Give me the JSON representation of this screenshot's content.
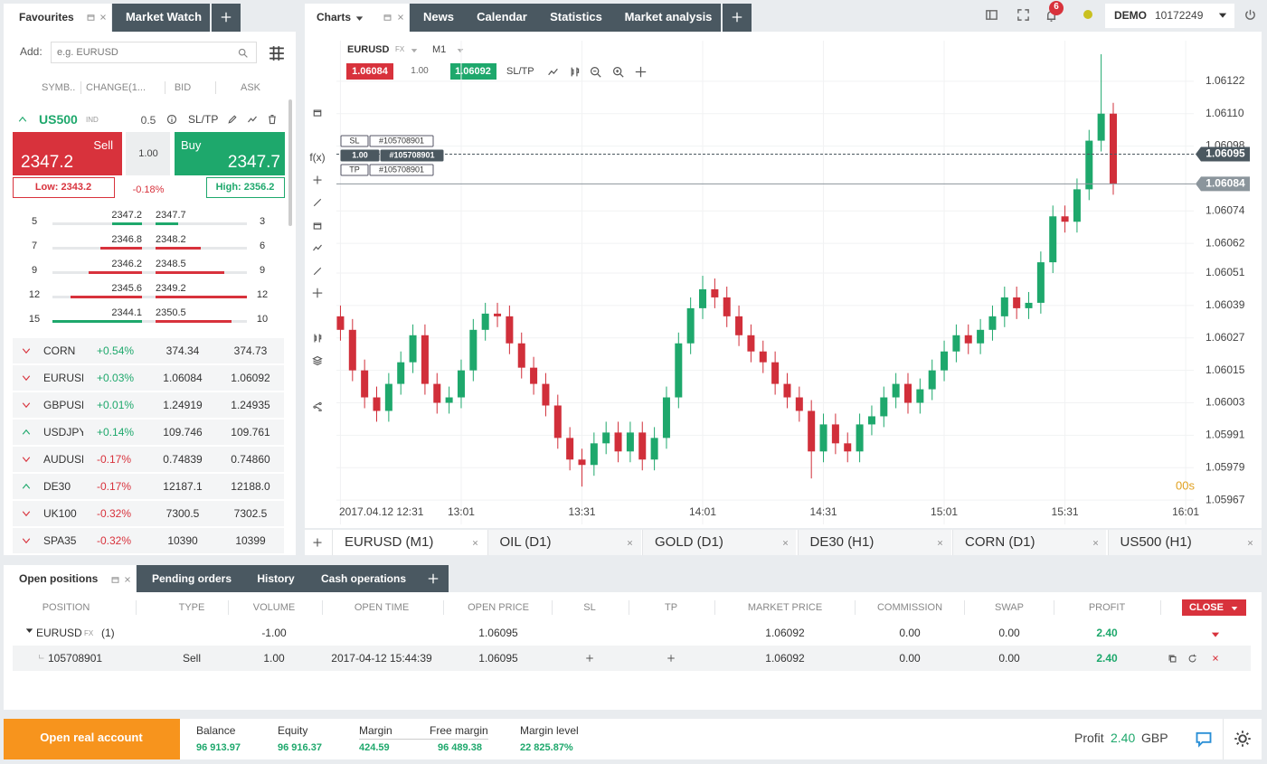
{
  "top_bar": {
    "notifications": 6,
    "account_type": "DEMO",
    "account_number": "10172249"
  },
  "left_panel": {
    "tabs": [
      "Favourites",
      "Market Watch"
    ],
    "add_label": "Add:",
    "search_placeholder": "e.g. EURUSD",
    "columns": [
      "SYMB..",
      "CHANGE(1...",
      "BID",
      "ASK"
    ],
    "featured": {
      "symbol": "US500",
      "tag": "IND",
      "volume": 0.5,
      "sltp": "SL/TP",
      "sell_label": "Sell",
      "sell_price": 2347.2,
      "volume_input": "1.00",
      "buy_label": "Buy",
      "buy_price": 2347.7,
      "low": "Low: 2343.2",
      "change": "-0.18%",
      "high": "High: 2356.2"
    },
    "depth": [
      {
        "bid_volume": 5,
        "bid": 2347.2,
        "ask": 2347.7,
        "ask_volume": 3,
        "bid_color": "#1ea86c",
        "ask_color": "#1ea86c"
      },
      {
        "bid_volume": 7,
        "bid": 2346.8,
        "ask": 2348.2,
        "ask_volume": 6,
        "bid_color": "#d8323c",
        "ask_color": "#d8323c"
      },
      {
        "bid_volume": 9,
        "bid": 2346.2,
        "ask": 2348.5,
        "ask_volume": 9,
        "bid_color": "#d8323c",
        "ask_color": "#d8323c"
      },
      {
        "bid_volume": 12,
        "bid": 2345.6,
        "ask": 2349.2,
        "ask_volume": 12,
        "bid_color": "#d8323c",
        "ask_color": "#d8323c"
      },
      {
        "bid_volume": 15,
        "bid": 2344.1,
        "ask": 2350.5,
        "ask_volume": 10,
        "bid_color": "#1ea86c",
        "ask_color": "#d8323c"
      }
    ],
    "instruments": [
      {
        "symbol": "CORN",
        "change": "+0.54%",
        "bid": 374.34,
        "ask": 374.73,
        "direction": "down"
      },
      {
        "symbol": "EURUSD",
        "change": "+0.03%",
        "bid": 1.06084,
        "ask": 1.06092,
        "direction": "down"
      },
      {
        "symbol": "GBPUSD",
        "change": "+0.01%",
        "bid": 1.24919,
        "ask": 1.24935,
        "direction": "down"
      },
      {
        "symbol": "USDJPY",
        "change": "+0.14%",
        "bid": 109.746,
        "ask": 109.761,
        "direction": "up"
      },
      {
        "symbol": "AUDUSD",
        "change": "-0.17%",
        "bid": 0.74839,
        "ask": "0.74860",
        "direction": "down"
      },
      {
        "symbol": "DE30",
        "change": "-0.17%",
        "bid": 12187.1,
        "ask": "12188.0",
        "direction": "up"
      },
      {
        "symbol": "UK100",
        "change": "-0.32%",
        "bid": 7300.5,
        "ask": 7302.5,
        "direction": "down"
      },
      {
        "symbol": "SPA35",
        "change": "-0.32%",
        "bid": 10390,
        "ask": 10399,
        "direction": "down"
      }
    ]
  },
  "chart_panel": {
    "tabs": [
      "Charts",
      "News",
      "Calendar",
      "Statistics",
      "Market analysis"
    ],
    "symbol": "EURUSD",
    "symbol_tag": "FX",
    "timeframe": "M1",
    "sell_price": 1.06084,
    "volume": "1.00",
    "buy_price": 1.06092,
    "sltp": "SL/TP",
    "tool_label": "f(x)",
    "position_labels": {
      "sl": "SL",
      "tp": "TP",
      "id": "#105708901",
      "volume": "1.00"
    },
    "countdown": "00s",
    "chart_tabs": [
      "EURUSD (M1)",
      "OIL (D1)",
      "GOLD (D1)",
      "DE30 (H1)",
      "CORN (D1)",
      "US500 (H1)"
    ]
  },
  "chart_data": {
    "type": "candlestick",
    "up_color": "#1ea86c",
    "down_color": "#d12f3a",
    "grid": true,
    "x": [
      "12:31",
      "12:34",
      "12:37",
      "12:40",
      "12:43",
      "12:46",
      "12:49",
      "12:52",
      "12:55",
      "12:58",
      "13:01",
      "13:04",
      "13:07",
      "13:10",
      "13:13",
      "13:16",
      "13:19",
      "13:22",
      "13:25",
      "13:28",
      "13:31",
      "13:34",
      "13:37",
      "13:40",
      "13:43",
      "13:46",
      "13:49",
      "13:52",
      "13:55",
      "13:58",
      "14:01",
      "14:04",
      "14:07",
      "14:10",
      "14:13",
      "14:16",
      "14:19",
      "14:22",
      "14:25",
      "14:28",
      "14:31",
      "14:34",
      "14:37",
      "14:40",
      "14:43",
      "14:46",
      "14:49",
      "14:52",
      "14:55",
      "14:58",
      "15:01",
      "15:04",
      "15:07",
      "15:10",
      "15:13",
      "15:16",
      "15:19",
      "15:22",
      "15:25",
      "15:28",
      "15:31",
      "15:34",
      "15:37",
      "15:40",
      "15:43"
    ],
    "open": [
      1.06035,
      1.0603,
      1.06015,
      1.06005,
      1.06,
      1.0601,
      1.06018,
      1.06028,
      1.0601,
      1.06003,
      1.06005,
      1.06015,
      1.0603,
      1.06036,
      1.06035,
      1.06025,
      1.06016,
      1.0601,
      1.06002,
      1.0599,
      1.05982,
      1.0598,
      1.05988,
      1.05992,
      1.05985,
      1.05992,
      1.05982,
      1.0599,
      1.06005,
      1.06025,
      1.06038,
      1.06045,
      1.06042,
      1.06035,
      1.06028,
      1.06022,
      1.06018,
      1.0601,
      1.06005,
      1.06,
      1.05985,
      1.05995,
      1.05988,
      1.05985,
      1.05995,
      1.05998,
      1.06005,
      1.0601,
      1.06003,
      1.06008,
      1.06015,
      1.06022,
      1.06028,
      1.06025,
      1.0603,
      1.06035,
      1.06042,
      1.06038,
      1.0604,
      1.06055,
      1.06072,
      1.0607,
      1.06082,
      1.061,
      1.0611
    ],
    "high": [
      1.06039,
      1.06034,
      1.06019,
      1.06009,
      1.06014,
      1.06022,
      1.06032,
      1.06032,
      1.06014,
      1.06009,
      1.06019,
      1.06034,
      1.0604,
      1.0604,
      1.06039,
      1.06029,
      1.0602,
      1.06014,
      1.06006,
      1.05994,
      1.05986,
      1.05992,
      1.05996,
      1.05996,
      1.05996,
      1.05996,
      1.05994,
      1.06009,
      1.06029,
      1.06042,
      1.0605,
      1.06049,
      1.06046,
      1.06039,
      1.06032,
      1.06026,
      1.06022,
      1.06014,
      1.06009,
      1.06004,
      1.05999,
      1.05999,
      1.05992,
      1.05999,
      1.06002,
      1.06009,
      1.06014,
      1.06014,
      1.06012,
      1.06019,
      1.06026,
      1.06032,
      1.06032,
      1.06034,
      1.06039,
      1.06046,
      1.06046,
      1.06044,
      1.06059,
      1.06076,
      1.06076,
      1.06086,
      1.06104,
      1.06132,
      1.06114
    ],
    "low": [
      1.06026,
      1.06011,
      1.06001,
      1.05996,
      1.05996,
      1.06006,
      1.06014,
      1.06006,
      1.05999,
      1.05999,
      1.06001,
      1.06011,
      1.06026,
      1.06031,
      1.06021,
      1.06012,
      1.06006,
      1.05998,
      1.05986,
      1.05978,
      1.05972,
      1.05976,
      1.05984,
      1.05981,
      1.05981,
      1.05978,
      1.05978,
      1.05986,
      1.06001,
      1.06021,
      1.06034,
      1.06038,
      1.06031,
      1.06024,
      1.06018,
      1.06014,
      1.06006,
      1.06001,
      1.05996,
      1.05975,
      1.05981,
      1.05984,
      1.05981,
      1.05981,
      1.05991,
      1.05994,
      1.06001,
      1.05999,
      1.05999,
      1.06004,
      1.06011,
      1.06018,
      1.06021,
      1.06021,
      1.06026,
      1.06031,
      1.06034,
      1.06034,
      1.06036,
      1.06051,
      1.06066,
      1.06066,
      1.06078,
      1.06096,
      1.0608
    ],
    "close": [
      1.0603,
      1.06015,
      1.06005,
      1.06,
      1.0601,
      1.06018,
      1.06028,
      1.0601,
      1.06003,
      1.06005,
      1.06015,
      1.0603,
      1.06036,
      1.06035,
      1.06025,
      1.06016,
      1.0601,
      1.06002,
      1.0599,
      1.05982,
      1.0598,
      1.05988,
      1.05992,
      1.05985,
      1.05992,
      1.05982,
      1.0599,
      1.06005,
      1.06025,
      1.06038,
      1.06045,
      1.06042,
      1.06035,
      1.06028,
      1.06022,
      1.06018,
      1.0601,
      1.06005,
      1.06,
      1.05985,
      1.05995,
      1.05988,
      1.05985,
      1.05995,
      1.05998,
      1.06005,
      1.0601,
      1.06003,
      1.06008,
      1.06015,
      1.06022,
      1.06028,
      1.06025,
      1.0603,
      1.06035,
      1.06042,
      1.06038,
      1.0604,
      1.06055,
      1.06072,
      1.0607,
      1.06082,
      1.061,
      1.0611,
      1.06084
    ],
    "xlim": [
      "12:30",
      "16:03"
    ],
    "xticks": [
      {
        "value": "12:31",
        "label": "2017.04.12 12:31"
      },
      "13:01",
      "13:31",
      "14:01",
      "14:31",
      "15:01",
      "15:31",
      "16:01"
    ],
    "ylim": [
      1.05958,
      1.06137
    ],
    "yticks": [
      1.05967,
      1.05979,
      1.05991,
      1.06003,
      1.06015,
      1.06027,
      1.06039,
      1.06051,
      1.06062,
      1.06074,
      1.06098,
      {
        "value": 1.0611,
        "label": "1.06110"
      },
      1.06122
    ],
    "price_lines": [
      {
        "value": 1.06095,
        "style": "dashed",
        "color": "#4b5860"
      },
      {
        "value": 1.06084,
        "style": "solid",
        "color": "#8b959c"
      }
    ]
  },
  "positions_panel": {
    "tabs": [
      "Open positions",
      "Pending orders",
      "History",
      "Cash operations"
    ],
    "columns": [
      "POSITION",
      "TYPE",
      "VOLUME",
      "OPEN TIME",
      "OPEN PRICE",
      "SL",
      "TP",
      "MARKET PRICE",
      "COMMISSION",
      "SWAP",
      "PROFIT"
    ],
    "close_button": "CLOSE",
    "group": {
      "symbol": "EURUSD",
      "tag": "FX",
      "count": "(1)",
      "volume": "-1.00",
      "open_price": 1.06095,
      "market_price": 1.06092,
      "commission": "0.00",
      "swap": "0.00",
      "profit": "2.40"
    },
    "rows": [
      {
        "position": 105708901,
        "type": "Sell",
        "volume": "1.00",
        "open_time": "2017-04-12 15:44:39",
        "open_price": 1.06095,
        "market_price": 1.06092,
        "commission": "0.00",
        "swap": "0.00",
        "profit": "2.40"
      }
    ]
  },
  "footer": {
    "cta": "Open real account",
    "stats": [
      {
        "label": "Balance",
        "value": "96 913.97"
      },
      {
        "label": "Equity",
        "value": "96 916.37"
      },
      {
        "label": "Margin",
        "value": "424.59"
      },
      {
        "label": "Free margin",
        "value": "96 489.38"
      },
      {
        "label": "Margin level",
        "value": "22 825.87%"
      }
    ],
    "profit_label": "Profit",
    "profit_value": "2.40",
    "currency": "GBP"
  }
}
